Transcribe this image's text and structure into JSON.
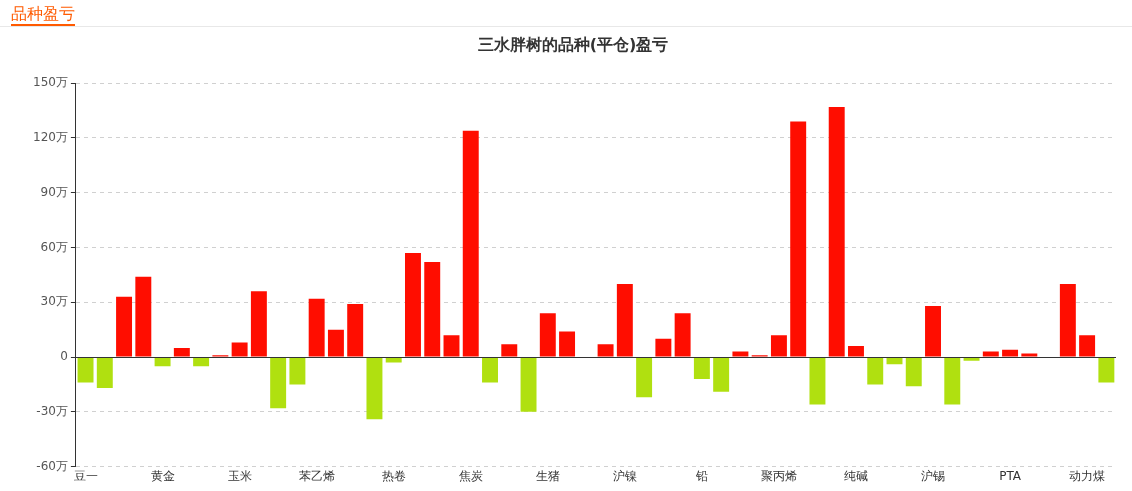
{
  "chart_data": {
    "type": "bar",
    "title": "三水胖树的品种(平仓)盈亏",
    "annotations": [
      "品种盈亏"
    ],
    "categories": [
      "豆一",
      null,
      null,
      null,
      "黄金",
      null,
      null,
      null,
      "玉米",
      null,
      null,
      null,
      "苯乙烯",
      null,
      null,
      null,
      "热卷",
      null,
      null,
      null,
      "焦炭",
      null,
      null,
      null,
      "生猪",
      null,
      null,
      null,
      "沪镍",
      null,
      null,
      null,
      "铅",
      null,
      null,
      null,
      "聚丙烯",
      null,
      null,
      null,
      "纯碱",
      null,
      null,
      null,
      "沪锡",
      null,
      null,
      null,
      "PTA",
      null,
      null,
      null,
      "动力煤",
      null
    ],
    "values": [
      -14,
      -17,
      33,
      44,
      -5,
      5,
      -5,
      1,
      8,
      36,
      -28,
      -15,
      32,
      15,
      29,
      -34,
      -3,
      57,
      52,
      12,
      124,
      -14,
      7,
      -30,
      24,
      14,
      0,
      7,
      40,
      -22,
      10,
      24,
      -12,
      -19,
      3,
      1,
      12,
      129,
      -26,
      137,
      6,
      -15,
      -4,
      -16,
      28,
      -26,
      -2,
      3,
      4,
      2,
      0,
      40,
      12,
      -14
    ],
    "colors": [
      "#b0e010",
      "#b0e010",
      "#ff0d00",
      "#ff0d00",
      "#b0e010",
      "#ff0d00",
      "#b0e010",
      "#ff0d00",
      "#ff0d00",
      "#ff0d00",
      "#b0e010",
      "#b0e010",
      "#ff0d00",
      "#ff0d00",
      "#ff0d00",
      "#b0e010",
      "#b0e010",
      "#ff0d00",
      "#ff0d00",
      "#ff0d00",
      "#ff0d00",
      "#b0e010",
      "#ff0d00",
      "#b0e010",
      "#ff0d00",
      "#ff0d00",
      "#ff0d00",
      "#ff0d00",
      "#ff0d00",
      "#b0e010",
      "#ff0d00",
      "#ff0d00",
      "#b0e010",
      "#b0e010",
      "#ff0d00",
      "#ff0d00",
      "#ff0d00",
      "#ff0d00",
      "#b0e010",
      "#ff0d00",
      "#ff0d00",
      "#b0e010",
      "#b0e010",
      "#b0e010",
      "#ff0d00",
      "#b0e010",
      "#b0e010",
      "#ff0d00",
      "#ff0d00",
      "#ff0d00",
      "#ff0d00",
      "#ff0d00",
      "#ff0d00",
      "#b0e010"
    ],
    "ylim": [
      -60,
      150
    ],
    "yticks": [
      {
        "value": -60,
        "label": "-60万"
      },
      {
        "value": -30,
        "label": "-30万"
      },
      {
        "value": 0,
        "label": "0"
      },
      {
        "value": 30,
        "label": "30万"
      },
      {
        "value": 60,
        "label": "60万"
      },
      {
        "value": 90,
        "label": "90万"
      },
      {
        "value": 120,
        "label": "120万"
      },
      {
        "value": 150,
        "label": "150万"
      }
    ],
    "grid": "y"
  }
}
